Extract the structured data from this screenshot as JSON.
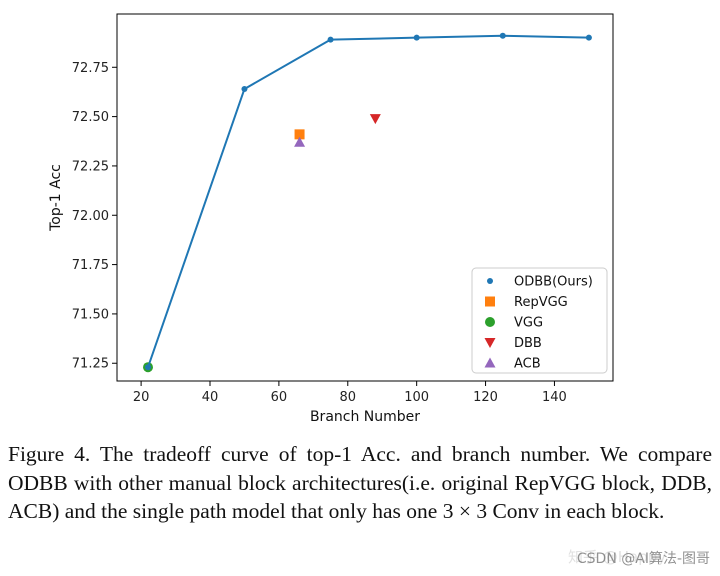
{
  "chart_data": {
    "type": "line",
    "xlabel": "Branch Number",
    "ylabel": "Top-1 Acc",
    "xlim": [
      13,
      157
    ],
    "ylim": [
      71.16,
      73.02
    ],
    "xticks": [
      20,
      40,
      60,
      80,
      100,
      120,
      140
    ],
    "yticks": [
      71.25,
      71.5,
      71.75,
      72.0,
      72.25,
      72.5,
      72.75
    ],
    "ytick_labels": [
      "71.25",
      "71.50",
      "71.75",
      "72.00",
      "72.25",
      "72.50",
      "72.75"
    ],
    "series": [
      {
        "name": "ODBB(Ours)",
        "kind": "line+points",
        "marker": "circle",
        "color": "#1f77b4",
        "x": [
          22,
          50,
          75,
          100,
          125,
          150
        ],
        "y": [
          71.23,
          72.64,
          72.89,
          72.9,
          72.91,
          72.9
        ]
      },
      {
        "name": "RepVGG",
        "kind": "point",
        "marker": "square",
        "color": "#ff7f0e",
        "x": [
          66
        ],
        "y": [
          72.41
        ]
      },
      {
        "name": "VGG",
        "kind": "point",
        "marker": "circle-large",
        "color": "#2ca02c",
        "x": [
          22
        ],
        "y": [
          71.23
        ]
      },
      {
        "name": "DBB",
        "kind": "point",
        "marker": "triangle-down",
        "color": "#d62728",
        "x": [
          88
        ],
        "y": [
          72.49
        ]
      },
      {
        "name": "ACB",
        "kind": "point",
        "marker": "triangle-up",
        "color": "#9467bd",
        "x": [
          66
        ],
        "y": [
          72.37
        ]
      }
    ],
    "legend_position": "lower-right"
  },
  "caption": "Figure 4. The tradeoff curve of top-1 Acc. and branch number. We compare ODBB with other manual block architectures(i.e. original RepVGG block, DDB, ACB) and the single path model that only has one 3 × 3 Conv in each block.",
  "watermark": "CSDN @AI算法-图哥",
  "watermark_faint": "知乎 @Happy"
}
